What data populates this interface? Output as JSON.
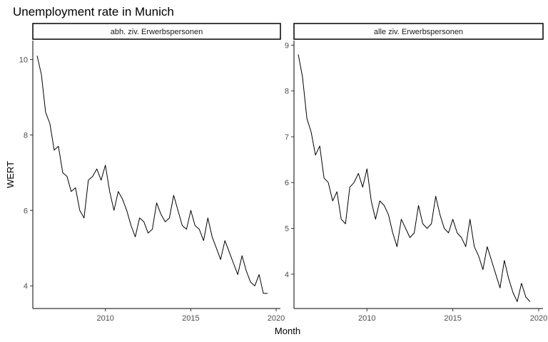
{
  "chart_data": {
    "type": "line",
    "title": "Unemployment rate in Munich",
    "xlabel": "Month",
    "ylabel": "WERT",
    "grid": false,
    "xlim": [
      2005.75,
      2020.25
    ],
    "x_ticks": [
      2010,
      2015,
      2020
    ],
    "panels": [
      {
        "strip": "abh. ziv. Erwerbspersonen",
        "ylim": [
          3.4,
          10.5
        ],
        "y_ticks": [
          4,
          6,
          8,
          10
        ],
        "x": [
          2006.0,
          2006.25,
          2006.5,
          2006.75,
          2007.0,
          2007.25,
          2007.5,
          2007.75,
          2008.0,
          2008.25,
          2008.5,
          2008.75,
          2009.0,
          2009.25,
          2009.5,
          2009.75,
          2010.0,
          2010.25,
          2010.5,
          2010.75,
          2011.0,
          2011.25,
          2011.5,
          2011.75,
          2012.0,
          2012.25,
          2012.5,
          2012.75,
          2013.0,
          2013.25,
          2013.5,
          2013.75,
          2014.0,
          2014.25,
          2014.5,
          2014.75,
          2015.0,
          2015.25,
          2015.5,
          2015.75,
          2016.0,
          2016.25,
          2016.5,
          2016.75,
          2017.0,
          2017.25,
          2017.5,
          2017.75,
          2018.0,
          2018.25,
          2018.5,
          2018.75,
          2019.0,
          2019.25,
          2019.5
        ],
        "values": [
          10.1,
          9.6,
          8.6,
          8.3,
          7.6,
          7.7,
          7.0,
          6.9,
          6.5,
          6.6,
          6.0,
          5.8,
          6.8,
          6.9,
          7.1,
          6.8,
          7.2,
          6.5,
          6.0,
          6.5,
          6.3,
          6.0,
          5.6,
          5.3,
          5.8,
          5.7,
          5.4,
          5.5,
          6.2,
          5.9,
          5.7,
          5.8,
          6.4,
          6.0,
          5.6,
          5.5,
          6.0,
          5.6,
          5.5,
          5.2,
          5.8,
          5.3,
          5.0,
          4.7,
          5.2,
          4.9,
          4.6,
          4.3,
          4.8,
          4.4,
          4.1,
          4.0,
          4.3,
          3.8,
          3.8
        ]
      },
      {
        "strip": "alle ziv. Erwerbspersonen",
        "ylim": [
          3.25,
          9.1
        ],
        "y_ticks": [
          4,
          5,
          6,
          7,
          8,
          9
        ],
        "x": [
          2006.0,
          2006.25,
          2006.5,
          2006.75,
          2007.0,
          2007.25,
          2007.5,
          2007.75,
          2008.0,
          2008.25,
          2008.5,
          2008.75,
          2009.0,
          2009.25,
          2009.5,
          2009.75,
          2010.0,
          2010.25,
          2010.5,
          2010.75,
          2011.0,
          2011.25,
          2011.5,
          2011.75,
          2012.0,
          2012.25,
          2012.5,
          2012.75,
          2013.0,
          2013.25,
          2013.5,
          2013.75,
          2014.0,
          2014.25,
          2014.5,
          2014.75,
          2015.0,
          2015.25,
          2015.5,
          2015.75,
          2016.0,
          2016.25,
          2016.5,
          2016.75,
          2017.0,
          2017.25,
          2017.5,
          2017.75,
          2018.0,
          2018.25,
          2018.5,
          2018.75,
          2019.0,
          2019.25,
          2019.5
        ],
        "values": [
          8.8,
          8.3,
          7.4,
          7.1,
          6.6,
          6.8,
          6.1,
          6.0,
          5.6,
          5.8,
          5.2,
          5.1,
          5.9,
          6.0,
          6.2,
          5.9,
          6.3,
          5.6,
          5.2,
          5.6,
          5.5,
          5.3,
          4.9,
          4.6,
          5.2,
          5.0,
          4.8,
          4.9,
          5.5,
          5.1,
          5.0,
          5.1,
          5.7,
          5.3,
          5.0,
          4.9,
          5.2,
          4.9,
          4.8,
          4.6,
          5.2,
          4.6,
          4.4,
          4.1,
          4.6,
          4.3,
          4.0,
          3.7,
          4.3,
          3.9,
          3.6,
          3.4,
          3.8,
          3.5,
          3.4
        ]
      }
    ]
  }
}
